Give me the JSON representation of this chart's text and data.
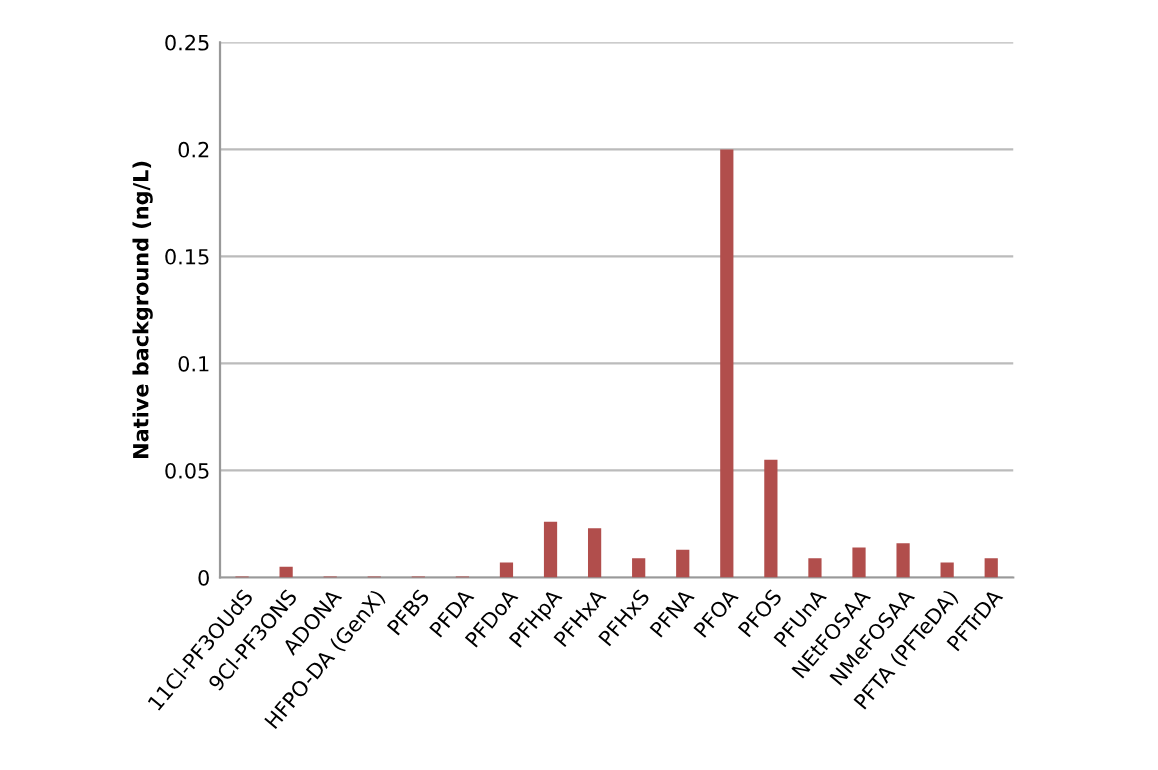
{
  "chart_data": {
    "type": "bar",
    "ylabel": "Native background (ng/L)",
    "categories": [
      "11Cl-PF3OUdS",
      "9Cl-PF3ONS",
      "ADONA",
      "HFPO-DA (GenX)",
      "PFBS",
      "PFDA",
      "PFDoA",
      "PFHpA",
      "PFHxA",
      "PFHxS",
      "PFNA",
      "PFOA",
      "PFOS",
      "PFUnA",
      "NEtFOSAA",
      "NMeFOSAA",
      "PFTA (PFTeDA)",
      "PFTrDA"
    ],
    "values": [
      0.0005,
      0.005,
      0.0005,
      0.0005,
      0.0005,
      0.0005,
      0.007,
      0.026,
      0.023,
      0.009,
      0.013,
      0.2,
      0.055,
      0.009,
      0.014,
      0.016,
      0.007,
      0.009
    ],
    "color": "#b14e4c",
    "ylim": [
      0,
      0.25
    ],
    "yticks": [
      0,
      0.05,
      0.1,
      0.15,
      0.2,
      0.25
    ],
    "grid": "y",
    "legend": false
  }
}
